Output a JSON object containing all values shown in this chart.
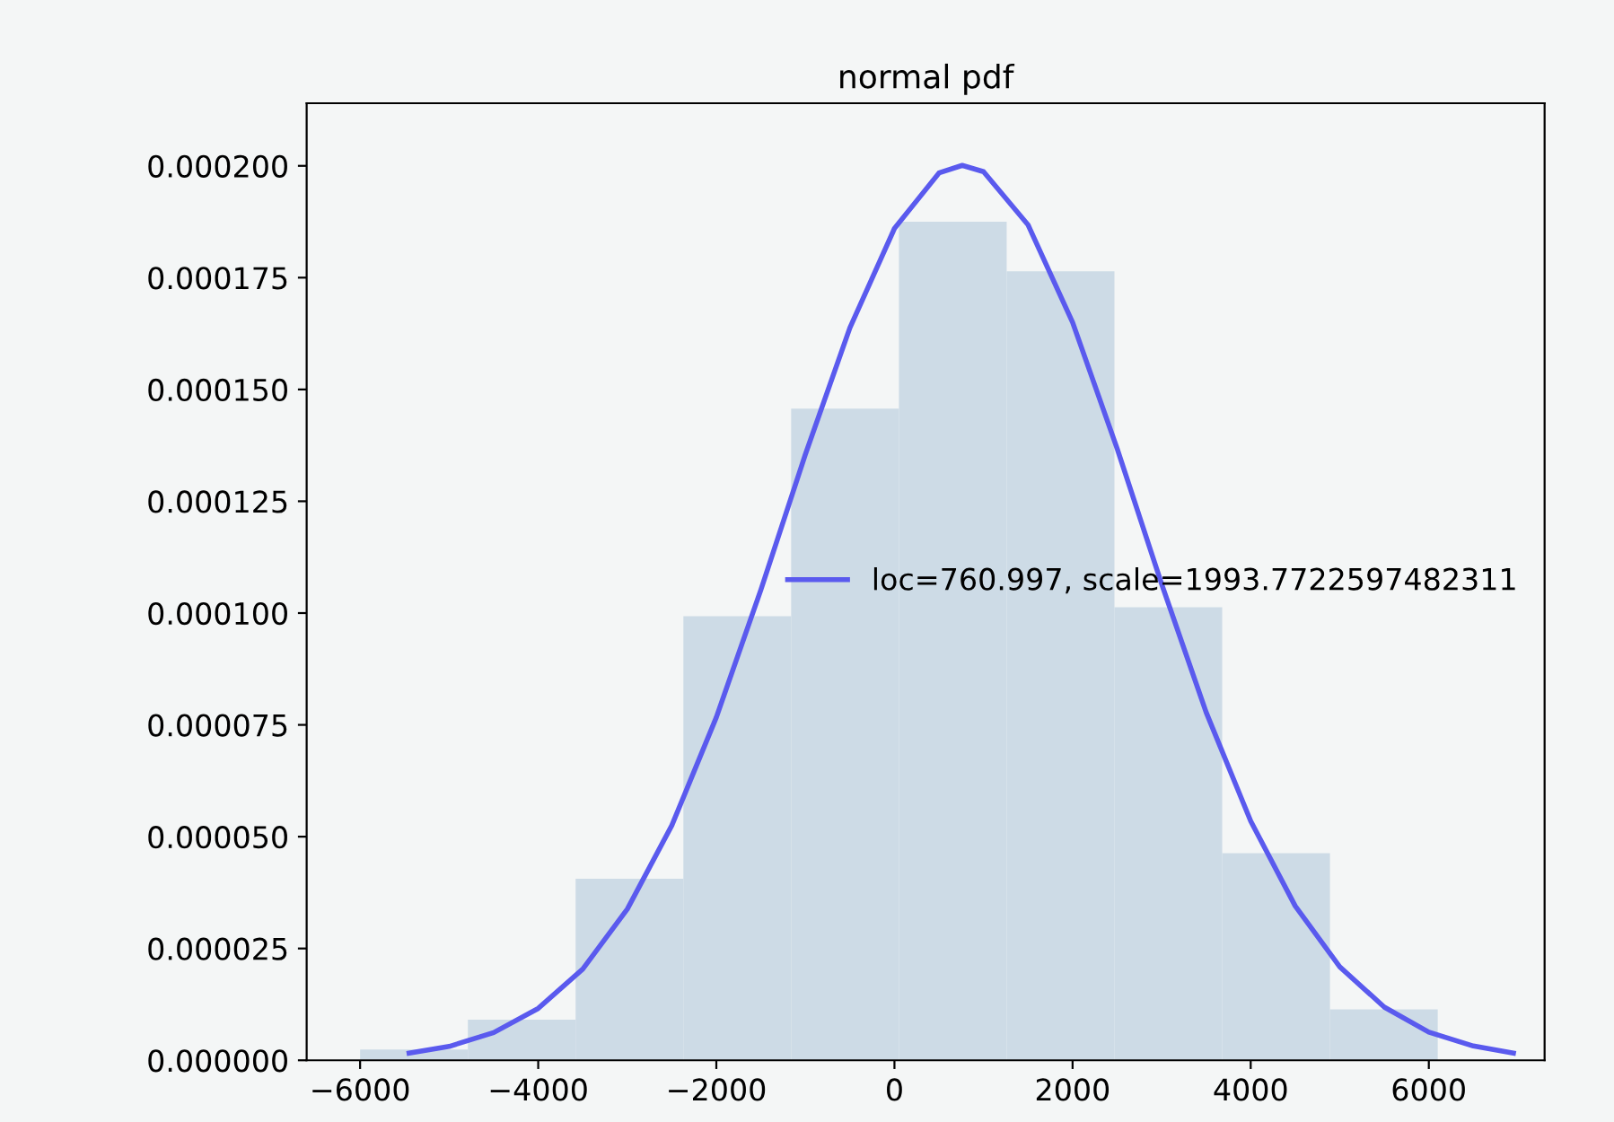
{
  "chart_data": {
    "type": "histogram",
    "title": "normal pdf",
    "bins": [
      -6000,
      -4790,
      -3580,
      -2370,
      -1160,
      50,
      1260,
      2470,
      3680,
      4890,
      6100
    ],
    "values": [
      2.4e-06,
      9.1e-06,
      4.06e-05,
      9.93e-05,
      0.0001457,
      0.0001875,
      0.0001764,
      0.0001013,
      4.63e-05,
      1.14e-05
    ],
    "color": "#cddbe6",
    "series": [
      {
        "type": "line",
        "name": "loc=760.997, scale=1993.7722597482311",
        "color": "#5a5aee",
        "x": [
          -5450,
          -5000,
          -4500,
          -4000,
          -3500,
          -3000,
          -2500,
          -2000,
          -1500,
          -1000,
          -500,
          0,
          500,
          761,
          1000,
          1500,
          2000,
          2500,
          3000,
          3500,
          4000,
          4500,
          5000,
          5500,
          6000,
          6500,
          6950
        ],
        "values": [
          1.6e-06,
          3.1e-06,
          6.2e-06,
          1.16e-05,
          2.04e-05,
          3.38e-05,
          5.25e-05,
          7.67e-05,
          0.0001052,
          0.0001355,
          0.0001638,
          0.000186,
          0.0001984,
          0.0002001,
          0.0001987,
          0.0001868,
          0.000165,
          0.0001368,
          0.0001065,
          7.78e-05,
          5.35e-05,
          3.45e-05,
          2.09e-05,
          1.19e-05,
          6.3e-06,
          3.2e-06,
          1.6e-06
        ]
      }
    ],
    "xlim": [
      -6600,
      7300
    ],
    "xticks": [
      {
        "value": -6000,
        "label": "−6000"
      },
      {
        "value": -4000,
        "label": "−4000"
      },
      {
        "value": -2000,
        "label": "−2000"
      },
      0,
      2000,
      4000,
      6000
    ],
    "ylim": [
      0,
      0.000214
    ],
    "yticks": [
      {
        "value": 0,
        "label": "0.000000"
      },
      {
        "value": 2.5e-05,
        "label": "0.000025"
      },
      {
        "value": 5e-05,
        "label": "0.000050"
      },
      {
        "value": 7.5e-05,
        "label": "0.000075"
      },
      {
        "value": 0.0001,
        "label": "0.000100"
      },
      {
        "value": 0.000125,
        "label": "0.000125"
      },
      {
        "value": 0.00015,
        "label": "0.000150"
      },
      {
        "value": 0.000175,
        "label": "0.000175"
      },
      {
        "value": 0.0002,
        "label": "0.000200"
      }
    ],
    "legend": "center right",
    "grid": false
  }
}
